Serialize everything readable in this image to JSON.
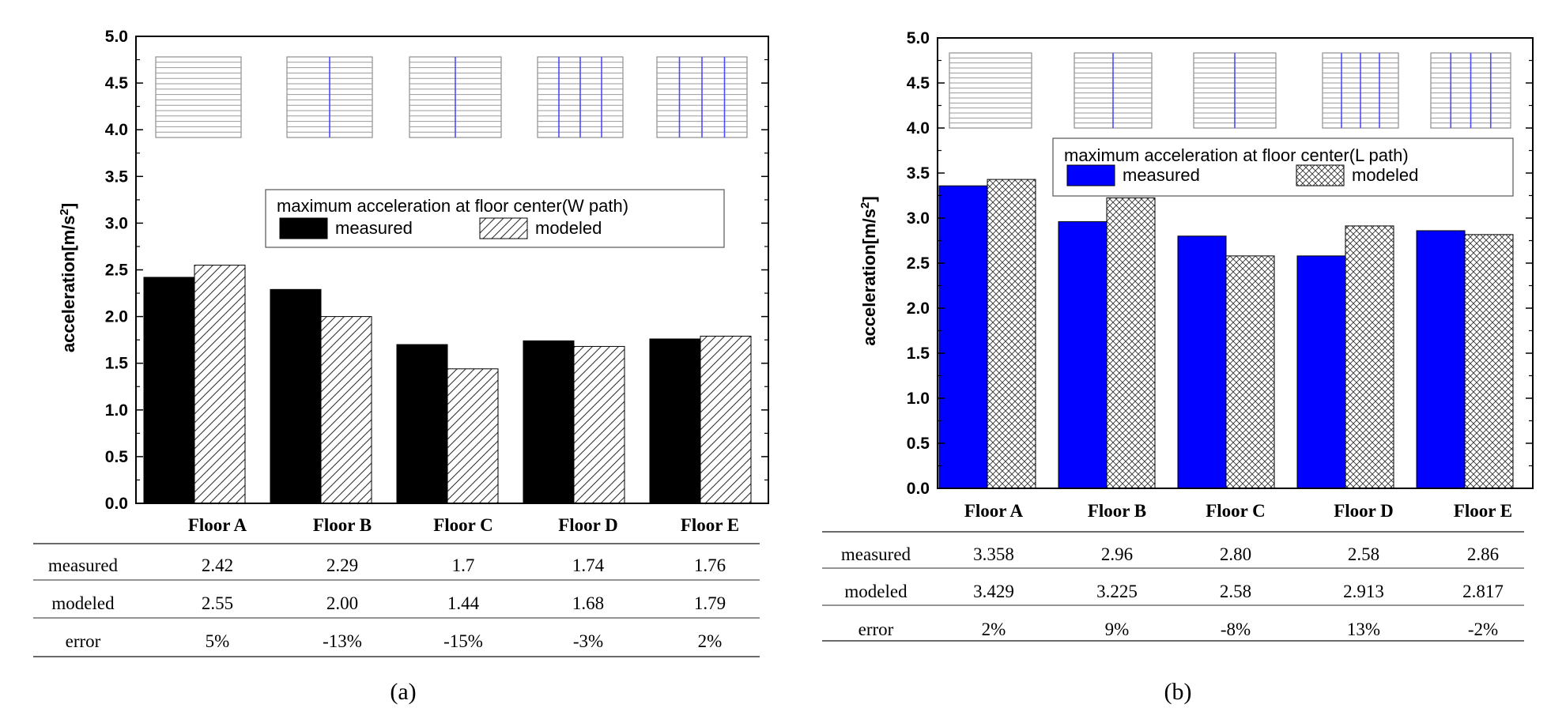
{
  "chart_data": [
    {
      "type": "bar",
      "panel_label": "(a)",
      "ylabel": "acceleration[m/s",
      "ylabel_sup": "2",
      "ylabel_end": "]",
      "ylim": [
        0,
        5.0
      ],
      "yticks": [
        "0.0",
        "0.5",
        "1.0",
        "1.5",
        "2.0",
        "2.5",
        "3.0",
        "3.5",
        "4.0",
        "4.5",
        "5.0"
      ],
      "categories": [
        "Floor A",
        "Floor B",
        "Floor C",
        "Floor D",
        "Floor E"
      ],
      "series": [
        {
          "name": "measured",
          "values": [
            2.42,
            2.29,
            1.7,
            1.74,
            1.76
          ],
          "color": "#000000"
        },
        {
          "name": "modeled",
          "values": [
            2.55,
            2.0,
            1.44,
            1.68,
            1.79
          ],
          "color": "#ffffff"
        }
      ],
      "legend_title": "maximum acceleration at floor center(W path)",
      "legend_position": "right",
      "table": {
        "rows": [
          {
            "label": "measured",
            "cells": [
              "2.42",
              "2.29",
              "1.7",
              "1.74",
              "1.76"
            ]
          },
          {
            "label": "modeled",
            "cells": [
              "2.55",
              "2.00",
              "1.44",
              "1.68",
              "1.79"
            ]
          },
          {
            "label": "error",
            "cells": [
              "5%",
              "-13%",
              "-15%",
              "-3%",
              "2%"
            ]
          }
        ]
      },
      "plan_vertical_lines": [
        0,
        1,
        1,
        3,
        3
      ],
      "accent_color": "#4a4aff"
    },
    {
      "type": "bar",
      "panel_label": "(b)",
      "ylabel": "acceleration[m/s",
      "ylabel_sup": "2",
      "ylabel_end": "]",
      "ylim": [
        0,
        5.0
      ],
      "yticks": [
        "0.0",
        "0.5",
        "1.0",
        "1.5",
        "2.0",
        "2.5",
        "3.0",
        "3.5",
        "4.0",
        "4.5",
        "5.0"
      ],
      "categories": [
        "Floor A",
        "Floor B",
        "Floor C",
        "Floor D",
        "Floor E"
      ],
      "series": [
        {
          "name": "measured",
          "values": [
            3.358,
            2.96,
            2.8,
            2.58,
            2.86
          ],
          "color": "#0000ff"
        },
        {
          "name": "modeled",
          "values": [
            3.429,
            3.225,
            2.58,
            2.913,
            2.817
          ],
          "color": "#ffffff"
        }
      ],
      "legend_title": "maximum acceleration at floor center(L path)",
      "legend_position": "right",
      "table": {
        "rows": [
          {
            "label": "measured",
            "cells": [
              "3.358",
              "2.96",
              "2.80",
              "2.58",
              "2.86"
            ]
          },
          {
            "label": "modeled",
            "cells": [
              "3.429",
              "3.225",
              "2.58",
              "2.913",
              "2.817"
            ]
          },
          {
            "label": "error",
            "cells": [
              "2%",
              "9%",
              "-8%",
              "13%",
              "-2%"
            ]
          }
        ]
      },
      "plan_vertical_lines": [
        0,
        1,
        1,
        3,
        3
      ],
      "accent_color": "#4a4aff"
    }
  ]
}
